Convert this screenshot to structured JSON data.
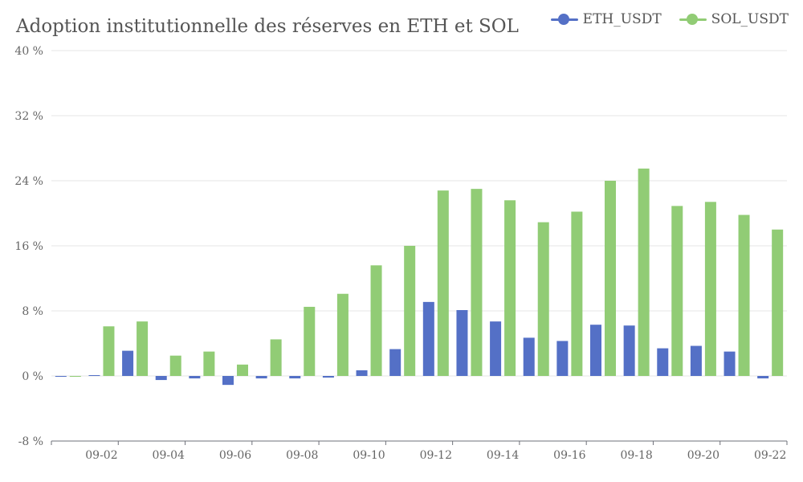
{
  "chart_data": {
    "type": "bar",
    "title": "Adoption institutionnelle des réserves en ETH et SOL",
    "xlabel": "",
    "ylabel": "",
    "ylim": [
      -8,
      40
    ],
    "y_ticks": [
      -8,
      0,
      8,
      16,
      24,
      32,
      40
    ],
    "y_tick_labels": [
      "-8 %",
      "0 %",
      "8 %",
      "16 %",
      "24 %",
      "32 %",
      "40 %"
    ],
    "categories": [
      "09-01",
      "09-02",
      "09-03",
      "09-04",
      "09-05",
      "09-06",
      "09-07",
      "09-08",
      "09-09",
      "09-10",
      "09-11",
      "09-12",
      "09-13",
      "09-14",
      "09-15",
      "09-16",
      "09-17",
      "09-18",
      "09-19",
      "09-20",
      "09-21",
      "09-22"
    ],
    "x_tick_labels": [
      "09-02",
      "09-04",
      "09-06",
      "09-08",
      "09-10",
      "09-12",
      "09-14",
      "09-16",
      "09-18",
      "09-20",
      "09-22"
    ],
    "series": [
      {
        "name": "ETH_USDT",
        "color": "#5470c6",
        "values": [
          -0.1,
          0.1,
          3.1,
          -0.5,
          -0.3,
          -1.1,
          -0.3,
          -0.3,
          -0.2,
          0.7,
          3.3,
          9.1,
          8.1,
          6.7,
          4.7,
          4.3,
          6.3,
          6.2,
          3.4,
          3.7,
          3.0,
          -0.3
        ]
      },
      {
        "name": "SOL_USDT",
        "color": "#91cc75",
        "values": [
          -0.1,
          6.1,
          6.7,
          2.5,
          3.0,
          1.4,
          4.5,
          8.5,
          10.1,
          13.6,
          16.0,
          22.8,
          23.0,
          21.6,
          18.9,
          20.2,
          24.0,
          25.5,
          20.9,
          21.4,
          19.8,
          18.0
        ]
      }
    ],
    "legend_position": "top-right",
    "grid": true
  }
}
